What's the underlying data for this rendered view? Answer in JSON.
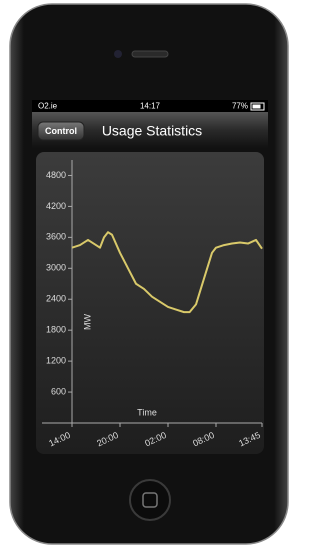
{
  "status_bar": {
    "carrier": "O2.ie",
    "time": "14:17",
    "battery": "77%"
  },
  "nav_bar": {
    "back_button": "Control",
    "title": "Usage Statistics"
  },
  "chart_data": {
    "type": "line",
    "x_label": "Time",
    "y_label": "MW",
    "x": [
      0,
      1,
      2,
      3,
      3.5,
      4,
      4.5,
      5,
      6,
      7,
      8,
      9,
      10,
      11,
      12,
      13,
      14,
      14.7,
      15.5,
      16.5,
      17.5,
      18,
      19,
      20,
      21,
      22,
      23,
      23.75
    ],
    "series": [
      {
        "color": "#d9c96a",
        "values": [
          3400,
          3450,
          3550,
          3450,
          3400,
          3600,
          3700,
          3650,
          3300,
          3000,
          2700,
          2600,
          2450,
          2350,
          2250,
          2200,
          2150,
          2150,
          2300,
          2800,
          3300,
          3400,
          3450,
          3480,
          3500,
          3480,
          3550,
          3380
        ]
      }
    ],
    "xlim": [
      0,
      23.75
    ],
    "xticks": [
      {
        "value": 0,
        "label": "14:00"
      },
      {
        "value": 6,
        "label": "20:00"
      },
      {
        "value": 12,
        "label": "02:00"
      },
      {
        "value": 18,
        "label": "08:00"
      },
      {
        "value": 23.75,
        "label": "13:45"
      }
    ],
    "ylim": [
      0,
      5100
    ],
    "yticks": [
      600,
      1200,
      1800,
      2400,
      3000,
      3600,
      4200,
      4800
    ]
  }
}
